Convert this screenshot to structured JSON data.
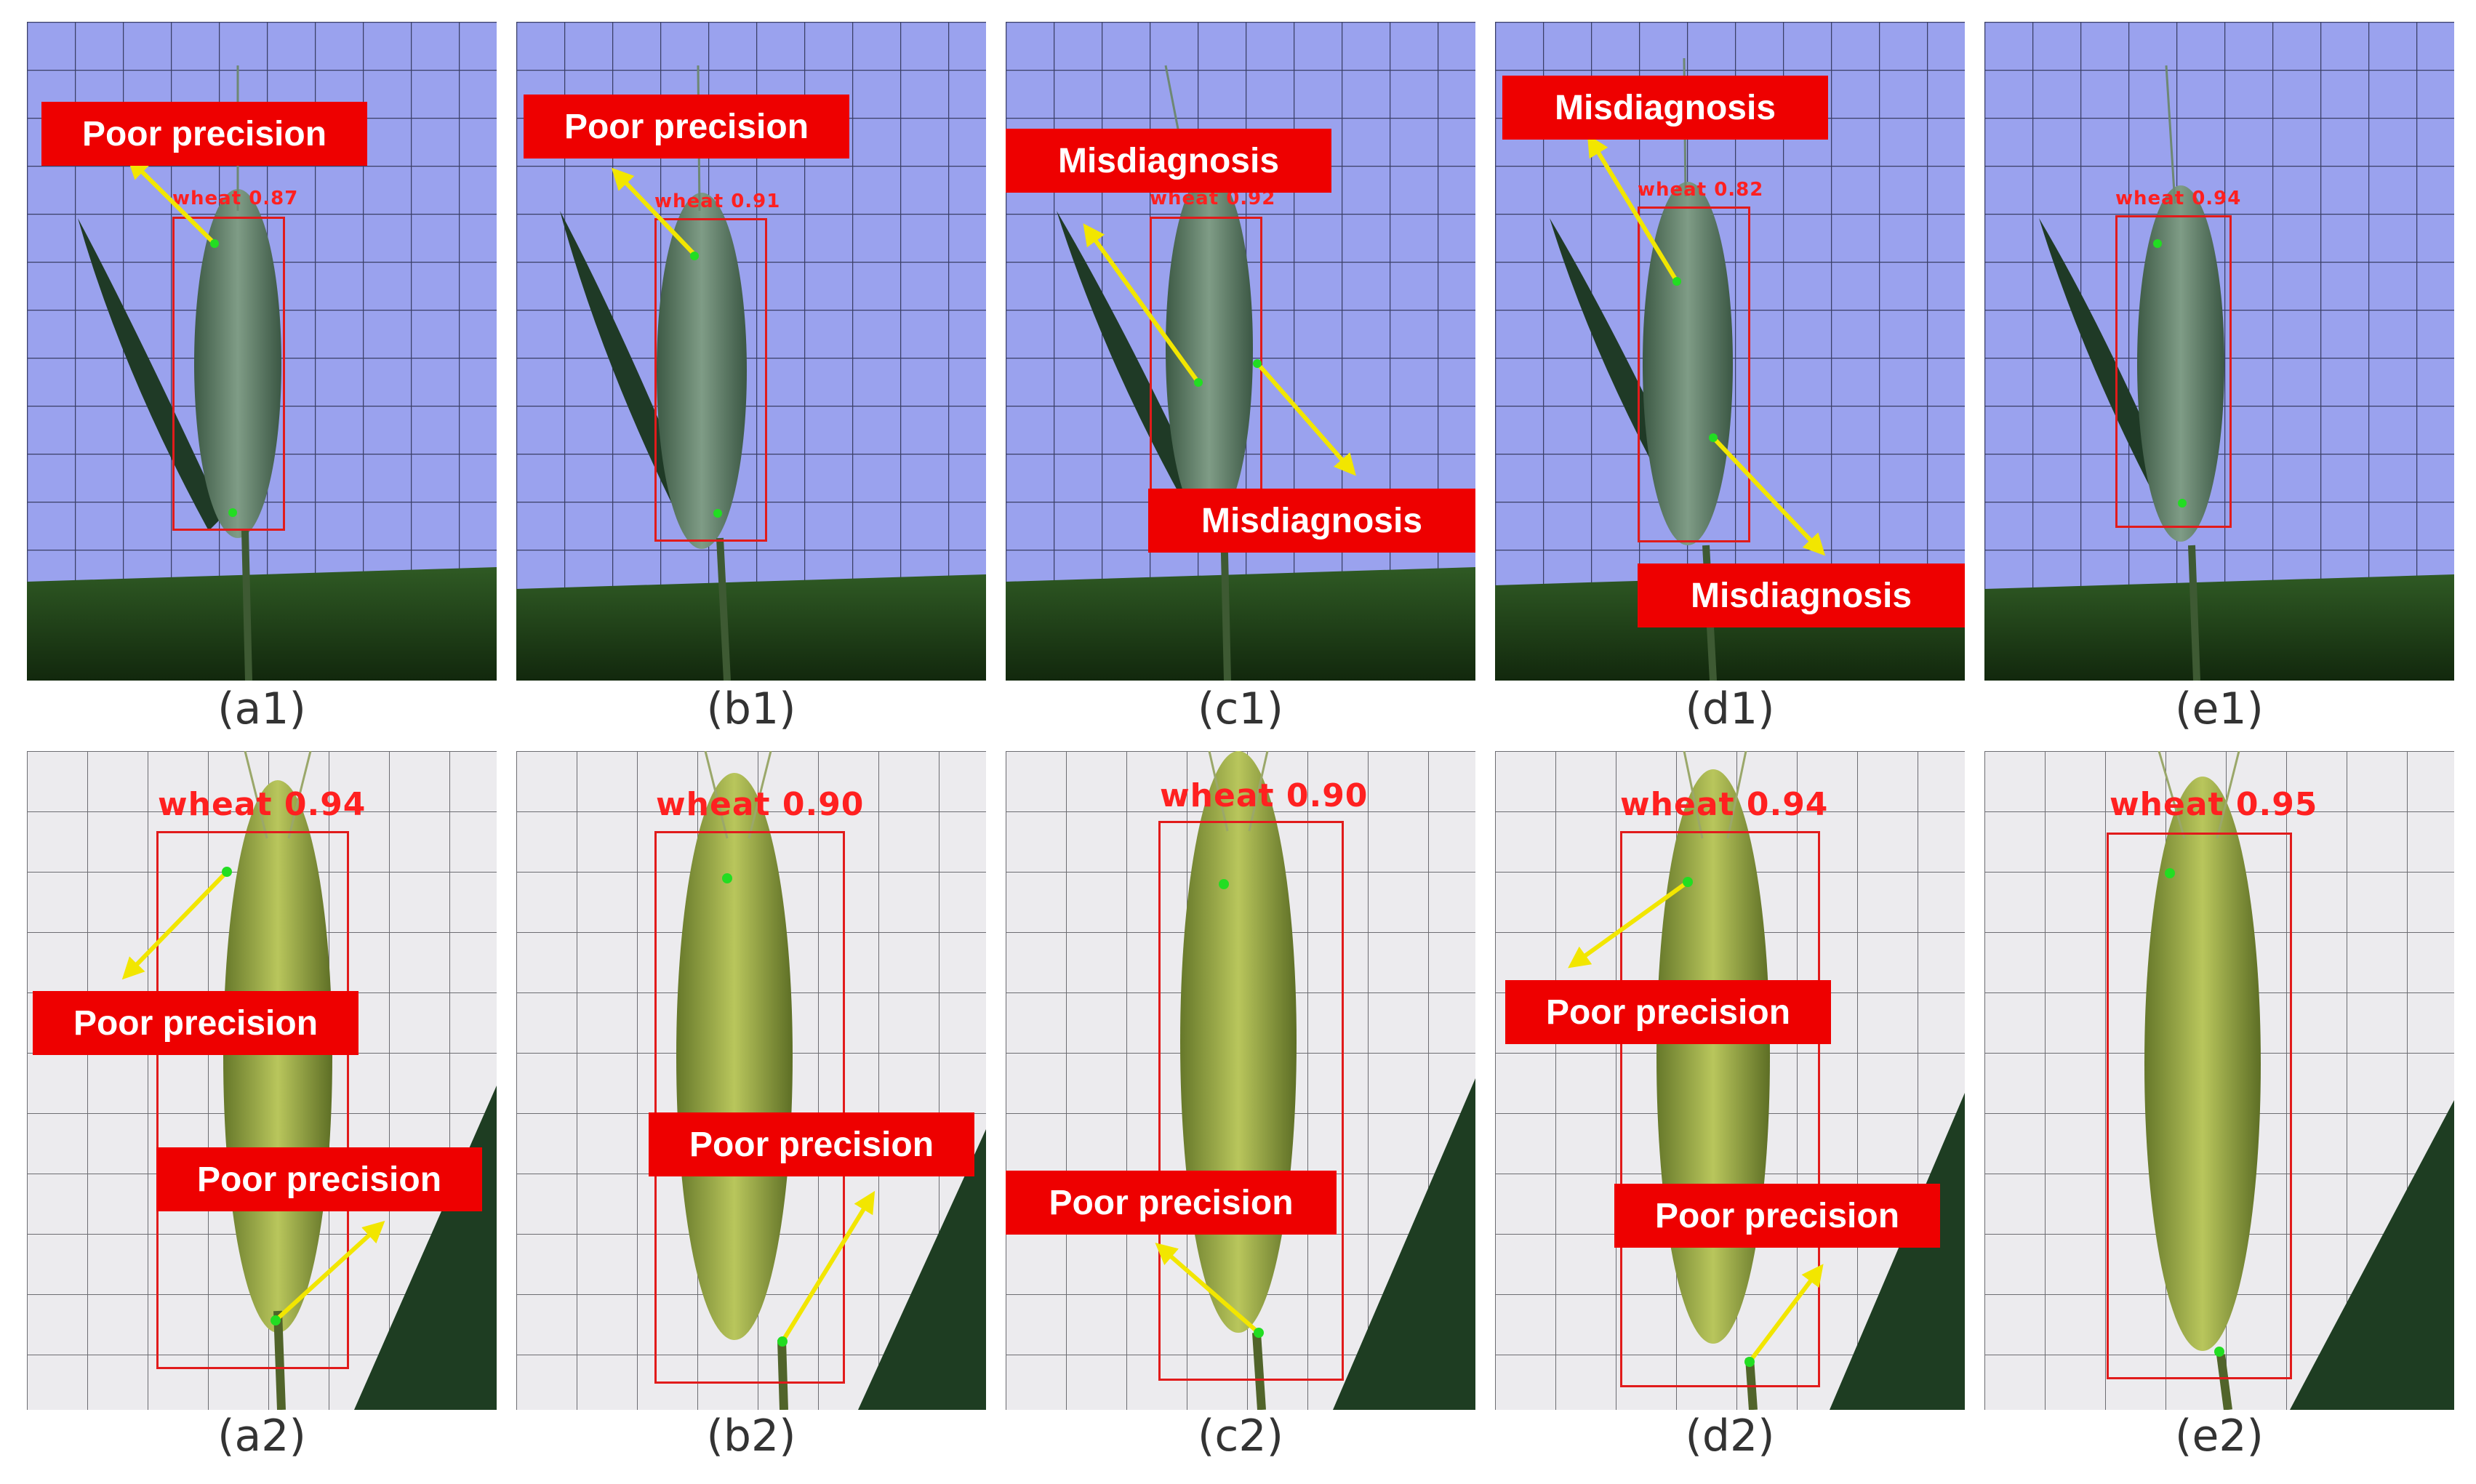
{
  "colors": {
    "accent_red": "#ee0000",
    "arrow_yellow": "#f2e600",
    "keypoint_green": "#22dd22",
    "bbox_red": "#e11b1b"
  },
  "panels": {
    "a1": {
      "caption": "(a1)",
      "det": "wheat 0.87",
      "callouts": [
        "Poor precision"
      ]
    },
    "b1": {
      "caption": "(b1)",
      "det": "wheat 0.91",
      "callouts": [
        "Poor precision"
      ]
    },
    "c1": {
      "caption": "(c1)",
      "det": "wheat 0.92",
      "callouts": [
        "Misdiagnosis",
        "Misdiagnosis"
      ]
    },
    "d1": {
      "caption": "(d1)",
      "det": "wheat 0.82",
      "callouts": [
        "Misdiagnosis",
        "Misdiagnosis"
      ]
    },
    "e1": {
      "caption": "(e1)",
      "det": "wheat 0.94",
      "callouts": []
    },
    "a2": {
      "caption": "(a2)",
      "det": "wheat 0.94",
      "callouts": [
        "Poor precision",
        "Poor precision"
      ]
    },
    "b2": {
      "caption": "(b2)",
      "det": "wheat 0.90",
      "callouts": [
        "Poor precision"
      ]
    },
    "c2": {
      "caption": "(c2)",
      "det": "wheat 0.90",
      "callouts": [
        "Poor precision"
      ]
    },
    "d2": {
      "caption": "(d2)",
      "det": "wheat 0.94",
      "callouts": [
        "Poor precision",
        "Poor precision"
      ]
    },
    "e2": {
      "caption": "(e2)",
      "det": "wheat 0.95",
      "callouts": []
    }
  }
}
